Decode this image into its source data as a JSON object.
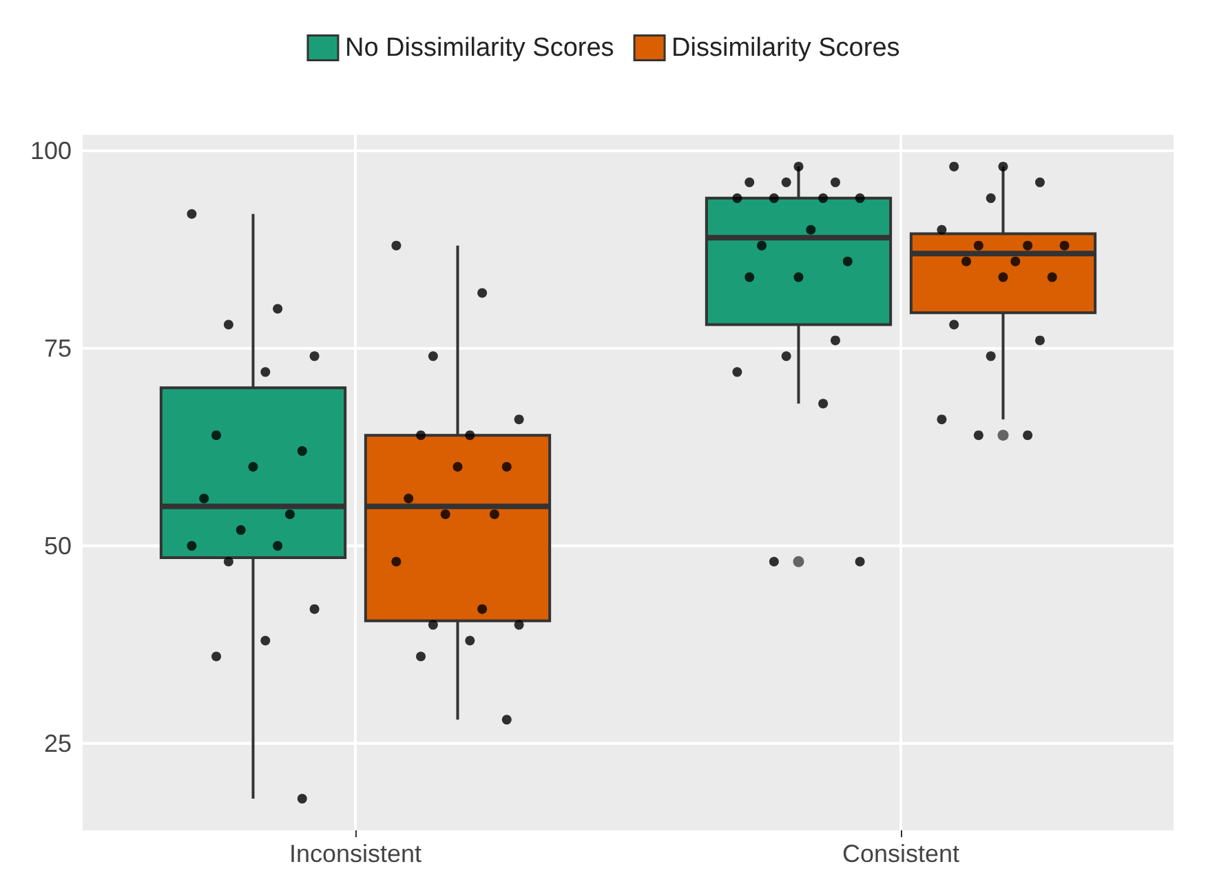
{
  "chart_data": {
    "type": "box",
    "categories": [
      "Inconsistent",
      "Consistent"
    ],
    "ylim": [
      14,
      102
    ],
    "yticks": [
      25,
      50,
      75,
      100
    ],
    "grid": true,
    "legend": "top",
    "series": [
      {
        "name": "No Dissimilarity Scores",
        "color": "#1b9e77",
        "boxes": [
          {
            "low": 18,
            "q1": 48.5,
            "median": 55,
            "q3": 70,
            "high": 92
          },
          {
            "low": 68,
            "q1": 78,
            "median": 89,
            "q3": 94,
            "high": 98,
            "outliers": [
              48
            ]
          }
        ]
      },
      {
        "name": "Dissimilarity Scores",
        "color": "#d95f02",
        "boxes": [
          {
            "low": 28,
            "q1": 40.5,
            "median": 55,
            "q3": 64,
            "high": 88
          },
          {
            "low": 66,
            "q1": 79.5,
            "median": 87,
            "q3": 89.5,
            "high": 98,
            "outliers": [
              64
            ]
          }
        ]
      },
      {
        "type": "scatter",
        "color": "#000000",
        "x": [
          "Inconsistent",
          "Inconsistent",
          "Inconsistent",
          "Inconsistent",
          "Inconsistent",
          "Inconsistent",
          "Inconsistent",
          "Inconsistent",
          "Inconsistent",
          "Inconsistent",
          "Inconsistent",
          "Inconsistent",
          "Inconsistent",
          "Inconsistent",
          "Inconsistent",
          "Inconsistent",
          "Inconsistent",
          "Inconsistent",
          "Consistent",
          "Consistent",
          "Consistent",
          "Consistent",
          "Consistent",
          "Consistent",
          "Consistent",
          "Consistent",
          "Consistent",
          "Consistent",
          "Consistent",
          "Consistent",
          "Consistent",
          "Consistent",
          "Consistent",
          "Consistent",
          "Consistent",
          "Consistent",
          "Consistent"
        ],
        "values": [
          92,
          80,
          78,
          74,
          72,
          64,
          62,
          60,
          56,
          54,
          52,
          50,
          50,
          48,
          42,
          38,
          36,
          18,
          98,
          96,
          96,
          96,
          94,
          94,
          94,
          94,
          90,
          88,
          86,
          84,
          84,
          76,
          74,
          72,
          68,
          48,
          48
        ]
      },
      {
        "type": "scatter",
        "color": "#000000",
        "x": [
          "Inconsistent",
          "Inconsistent",
          "Inconsistent",
          "Inconsistent",
          "Inconsistent",
          "Inconsistent",
          "Inconsistent",
          "Inconsistent",
          "Inconsistent",
          "Inconsistent",
          "Inconsistent",
          "Inconsistent",
          "Inconsistent",
          "Inconsistent",
          "Inconsistent",
          "Inconsistent",
          "Inconsistent",
          "Inconsistent",
          "Consistent",
          "Consistent",
          "Consistent",
          "Consistent",
          "Consistent",
          "Consistent",
          "Consistent",
          "Consistent",
          "Consistent",
          "Consistent",
          "Consistent",
          "Consistent",
          "Consistent",
          "Consistent",
          "Consistent",
          "Consistent",
          "Consistent",
          "Consistent"
        ],
        "values": [
          88,
          82,
          74,
          66,
          64,
          64,
          60,
          60,
          56,
          54,
          54,
          48,
          42,
          40,
          40,
          38,
          36,
          28,
          98,
          98,
          96,
          94,
          90,
          88,
          88,
          88,
          86,
          86,
          84,
          84,
          78,
          76,
          74,
          66,
          64,
          64
        ]
      }
    ]
  }
}
